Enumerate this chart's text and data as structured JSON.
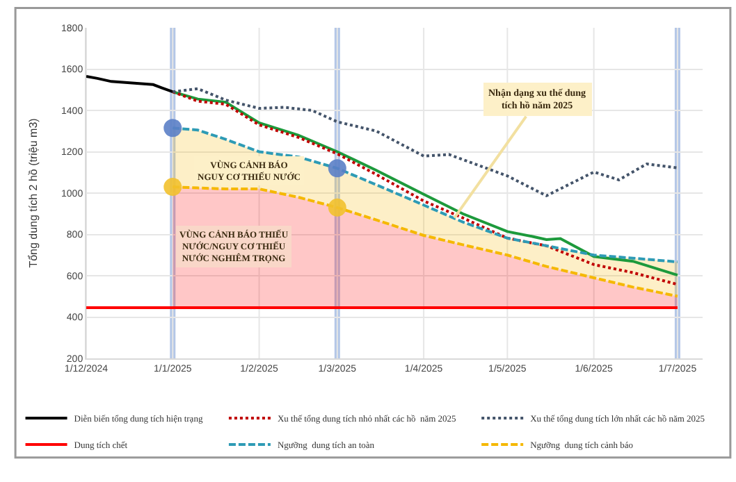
{
  "chart_data": {
    "type": "line",
    "ylabel": "Tổng dung tích 2 hồ (triệu m3)",
    "xlim": [
      "2024-12-01",
      "2025-07-10"
    ],
    "xticks": [
      {
        "value": "2024-12-01",
        "label": "1/12/2024"
      },
      {
        "value": "2025-01-01",
        "label": "1/1/2025"
      },
      {
        "value": "2025-02-01",
        "label": "1/2/2025"
      },
      {
        "value": "2025-03-01",
        "label": "1/3/2025"
      },
      {
        "value": "2025-04-01",
        "label": "1/4/2025"
      },
      {
        "value": "2025-05-01",
        "label": "1/5/2025"
      },
      {
        "value": "2025-06-01",
        "label": "1/6/2025"
      },
      {
        "value": "2025-07-01",
        "label": "1/7/2025"
      }
    ],
    "ylim": [
      200,
      1800
    ],
    "yticks": [
      200,
      400,
      600,
      800,
      1000,
      1200,
      1400,
      1600,
      1800
    ],
    "grid": true,
    "legend": "bottom",
    "series": [
      {
        "name": "Diễn biến tổng dung tích hiện trạng",
        "color": "#000000",
        "line_style": "solid",
        "x": [
          "2024-12-01",
          "2024-12-05",
          "2024-12-10",
          "2024-12-15",
          "2024-12-20",
          "2024-12-25",
          "2024-12-28",
          "2025-01-01"
        ],
        "values": [
          1565,
          1555,
          1540,
          1535,
          1530,
          1525,
          1510,
          1490
        ]
      },
      {
        "name": "Xu thế tổng dung tích nhỏ nhất các hồ  năm 2025",
        "color": "#c00000",
        "line_style": "dotted",
        "x": [
          "2025-01-01",
          "2025-01-10",
          "2025-01-20",
          "2025-02-01",
          "2025-02-15",
          "2025-03-01",
          "2025-03-15",
          "2025-04-01",
          "2025-04-15",
          "2025-05-01",
          "2025-05-15",
          "2025-06-01",
          "2025-06-15",
          "2025-07-01"
        ],
        "values": [
          1490,
          1445,
          1430,
          1330,
          1270,
          1190,
          1090,
          962,
          880,
          782,
          745,
          654,
          615,
          558
        ]
      },
      {
        "name": "Xu thế tổng dung tích lớn nhất các hồ năm 2025",
        "color": "#44546a",
        "line_style": "dotted",
        "x": [
          "2025-01-01",
          "2025-01-10",
          "2025-01-20",
          "2025-02-01",
          "2025-02-10",
          "2025-02-20",
          "2025-03-01",
          "2025-03-15",
          "2025-04-01",
          "2025-04-10",
          "2025-05-01",
          "2025-05-15",
          "2025-06-01",
          "2025-06-10",
          "2025-06-20",
          "2025-07-01"
        ],
        "values": [
          1490,
          1505,
          1450,
          1410,
          1415,
          1400,
          1345,
          1300,
          1179,
          1187,
          1083,
          987,
          1102,
          1064,
          1141,
          1122
        ]
      },
      {
        "name": "Dung tích chết",
        "color": "#ff0000",
        "line_style": "solid",
        "x": [
          "2024-12-01",
          "2025-01-01",
          "2025-01-10",
          "2025-01-20",
          "2025-02-01",
          "2025-02-15",
          "2025-03-01",
          "2025-03-15",
          "2025-04-01",
          "2025-04-15",
          "2025-05-01",
          "2025-05-15",
          "2025-06-01",
          "2025-06-15",
          "2025-07-01"
        ],
        "values": [
          445,
          445,
          445,
          445,
          445,
          445,
          445,
          445,
          445,
          445,
          445,
          445,
          445,
          445,
          445
        ],
        "lower": [
          null,
          445,
          445,
          445,
          445,
          445,
          445,
          445,
          445,
          445,
          445,
          445,
          445,
          445,
          445
        ],
        "upper": [
          null,
          1030,
          1025,
          1020,
          1020,
          980,
          930,
          870,
          795,
          750,
          700,
          645,
          590,
          545,
          501
        ]
      },
      {
        "name": "Ngưỡng  dung tích an toàn",
        "color": "#2e9bb5",
        "line_style": "dashed",
        "x": [
          "2025-01-01",
          "2025-01-10",
          "2025-01-20",
          "2025-02-01",
          "2025-02-15",
          "2025-03-01",
          "2025-03-15",
          "2025-04-01",
          "2025-04-15",
          "2025-05-01",
          "2025-05-15",
          "2025-06-01",
          "2025-06-15",
          "2025-07-01"
        ],
        "values": [
          1315,
          1305,
          1260,
          1200,
          1175,
          1120,
          1040,
          942,
          860,
          782,
          745,
          700,
          685,
          667
        ]
      },
      {
        "name": "Ngưỡng  dung tích cảnh báo",
        "color": "#f5b800",
        "line_style": "dashed",
        "x": [
          "2025-01-01",
          "2025-01-10",
          "2025-01-20",
          "2025-02-01",
          "2025-02-15",
          "2025-03-01",
          "2025-03-15",
          "2025-04-01",
          "2025-04-15",
          "2025-05-01",
          "2025-05-15",
          "2025-06-01",
          "2025-06-15",
          "2025-07-01"
        ],
        "values": [
          1030,
          1025,
          1020,
          1020,
          980,
          930,
          870,
          795,
          750,
          700,
          645,
          590,
          545,
          501
        ],
        "lower": [
          1030,
          1025,
          1020,
          1020,
          980,
          930,
          870,
          795,
          750,
          700,
          645,
          590,
          545,
          501
        ],
        "upper": [
          1315,
          1305,
          1260,
          1200,
          1175,
          1120,
          1040,
          942,
          860,
          782,
          745,
          700,
          685,
          667
        ]
      },
      {
        "color": "#1d9a3c",
        "line_style": "solid",
        "x": [
          "2025-01-01",
          "2025-01-10",
          "2025-01-20",
          "2025-02-01",
          "2025-02-15",
          "2025-03-01",
          "2025-03-15",
          "2025-04-01",
          "2025-04-15",
          "2025-05-01",
          "2025-05-10",
          "2025-05-15",
          "2025-05-20",
          "2025-06-01",
          "2025-06-15",
          "2025-07-01"
        ],
        "values": [
          1490,
          1455,
          1440,
          1340,
          1280,
          1200,
          1110,
          994,
          900,
          814,
          790,
          775,
          780,
          693,
          670,
          603
        ]
      },
      {
        "type": "scatter",
        "color": "#5b7fc7",
        "x": [
          "2025-01-01",
          "2025-03-01"
        ],
        "values": [
          1315,
          1120
        ]
      },
      {
        "type": "scatter",
        "color": "#f2c12e",
        "x": [
          "2025-01-01",
          "2025-03-01"
        ],
        "values": [
          1030,
          930
        ]
      }
    ],
    "bands": [
      {
        "axis": "x",
        "from": "2024-12-31",
        "to": "2025-01-02",
        "color": "#b4c7e7"
      },
      {
        "axis": "x",
        "from": "2025-02-28",
        "to": "2025-03-02",
        "color": "#b4c7e7"
      },
      {
        "axis": "x",
        "from": "2025-06-30",
        "to": "2025-07-02",
        "color": "#b4c7e7"
      }
    ],
    "annotations": [
      "VÙNG CẢNH BÁO\nNGUY CƠ THIẾU NƯỚC",
      "VÙNG CẢNH BÁO THIẾU\nNƯỚC/NGUY CƠ THIẾU\nNƯỚC NGHIÊM TRỌNG",
      {
        "text": "Nhận dạng xu thế dung\ntích hồ năm 2025",
        "x": "2025-04-12",
        "y": 880
      }
    ]
  }
}
